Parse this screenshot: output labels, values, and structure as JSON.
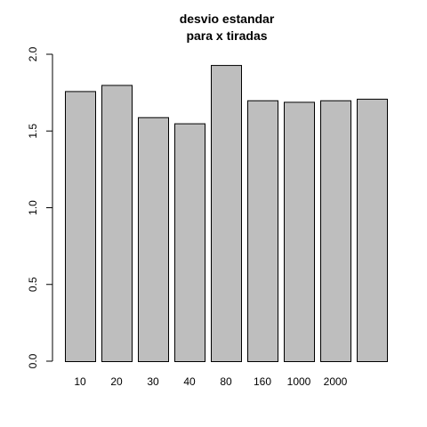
{
  "chart_data": {
    "type": "bar",
    "title_line1": "desvio estandar",
    "title_line2": "para x tiradas",
    "xlabel": "",
    "ylabel": "",
    "categories": [
      "10",
      "20",
      "30",
      "40",
      "80",
      "160",
      "1000",
      "2000",
      ""
    ],
    "values": [
      1.76,
      1.8,
      1.59,
      1.55,
      1.93,
      1.7,
      1.69,
      1.7,
      1.71
    ],
    "ylim": [
      0,
      2.0
    ],
    "yticks": [
      0.0,
      0.5,
      1.0,
      1.5,
      2.0
    ],
    "ytick_labels": [
      "0.0",
      "0.5",
      "1.0",
      "1.5",
      "2.0"
    ],
    "grid": false,
    "bar_fill": "#bebebe",
    "bar_stroke": "#000000"
  }
}
